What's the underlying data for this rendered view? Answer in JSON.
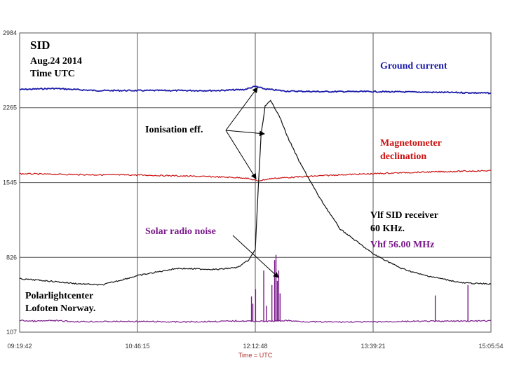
{
  "chart_data": {
    "type": "line",
    "title": "SID",
    "subtitle_lines": [
      "Aug.24 2014",
      "Time UTC"
    ],
    "xlabel": "Time = UTC",
    "x_ticks": [
      "09:19:42",
      "10:46:15",
      "12:12:48",
      "13:39:21",
      "15:05:54"
    ],
    "y_ticks": [
      "2984",
      "2265",
      "1545",
      "826",
      "107"
    ],
    "ylim": [
      107,
      2984
    ],
    "grid": true,
    "series": [
      {
        "name": "Ground current",
        "color": "#1a1aaa",
        "times": [
          "09:19:42",
          "09:45",
          "10:15",
          "10:46:15",
          "11:15",
          "11:45",
          "12:05",
          "12:12:48",
          "12:20",
          "12:35",
          "13:00",
          "13:39:21",
          "14:15",
          "14:45",
          "15:05:54"
        ],
        "values": [
          2440,
          2450,
          2430,
          2430,
          2430,
          2430,
          2440,
          2470,
          2445,
          2425,
          2420,
          2420,
          2415,
          2410,
          2405
        ]
      },
      {
        "name": "Magnetometer declination",
        "color": "#cc1111",
        "times": [
          "09:19:42",
          "09:45",
          "10:15",
          "10:46:15",
          "11:15",
          "11:45",
          "12:05",
          "12:12:48",
          "12:14",
          "12:25",
          "12:45",
          "13:15",
          "13:39:21",
          "14:00",
          "14:30",
          "15:05:54"
        ],
        "values": [
          1630,
          1625,
          1620,
          1618,
          1610,
          1600,
          1590,
          1568,
          1560,
          1585,
          1600,
          1620,
          1630,
          1640,
          1650,
          1660
        ]
      },
      {
        "name": "Vlf SID receiver",
        "color": "#111111",
        "times": [
          "09:19:42",
          "09:40",
          "10:00",
          "10:20",
          "10:46:15",
          "11:15",
          "11:45",
          "12:00",
          "12:08",
          "12:12:48",
          "12:15",
          "12:17",
          "12:20",
          "12:24",
          "12:30",
          "12:36",
          "12:45",
          "13:00",
          "13:15",
          "13:39:21",
          "14:00",
          "14:15",
          "14:30",
          "14:45",
          "15:05:54"
        ],
        "values": [
          620,
          600,
          575,
          560,
          650,
          720,
          710,
          730,
          800,
          900,
          1500,
          2000,
          2280,
          2330,
          2200,
          2000,
          1750,
          1400,
          1100,
          860,
          720,
          660,
          620,
          580,
          570
        ]
      },
      {
        "name": "Vhf 56.00 MHz",
        "color": "#7a1a8a",
        "times": [
          "09:19:42",
          "09:30",
          "09:45",
          "10:00",
          "10:46:15",
          "11:15",
          "11:45",
          "12:00",
          "12:12:48",
          "12:20",
          "12:30",
          "12:35",
          "12:45",
          "13:00",
          "13:39:21",
          "14:00",
          "14:30",
          "15:05:54"
        ],
        "values": [
          220,
          212,
          218,
          208,
          210,
          205,
          210,
          215,
          212,
          210,
          215,
          220,
          210,
          205,
          205,
          210,
          212,
          215
        ]
      }
    ],
    "vhf_spikes": [
      {
        "time": "12:10",
        "value": 450
      },
      {
        "time": "12:11",
        "value": 380
      },
      {
        "time": "12:13",
        "value": 520
      },
      {
        "time": "12:19",
        "value": 700
      },
      {
        "time": "12:21",
        "value": 360
      },
      {
        "time": "12:25",
        "value": 560
      },
      {
        "time": "12:27",
        "value": 800
      },
      {
        "time": "12:28",
        "value": 850
      },
      {
        "time": "12:29",
        "value": 600
      },
      {
        "time": "12:30",
        "value": 700
      },
      {
        "time": "12:31",
        "value": 480
      },
      {
        "time": "14:25",
        "value": 460
      },
      {
        "time": "14:49",
        "value": 560
      }
    ],
    "annotations": {
      "ground_current": "Ground current",
      "magnetometer_line1": "Magnetometer",
      "magnetometer_line2": "declination",
      "ionisation": "Ionisation eff.",
      "solar_radio": "Solar radio noise",
      "vlf_line1": "Vlf SID receiver",
      "vlf_line2": "60 KHz.",
      "vhf": "Vhf 56.00 MHz",
      "location_line1": "Polarlightcenter",
      "location_line2": "Lofoten Norway."
    }
  }
}
